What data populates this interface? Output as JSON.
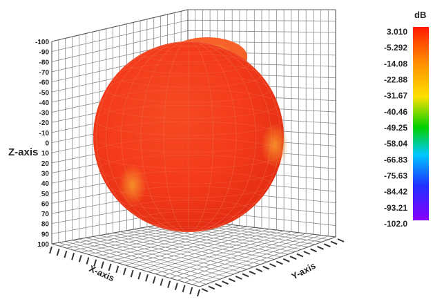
{
  "chart_data": {
    "type": "3d-surface",
    "surface": "spherical radiation pattern",
    "z_axis": {
      "label": "Z-axis",
      "ticks": [
        "-100",
        "-90",
        "-80",
        "-70",
        "-60",
        "-50",
        "-40",
        "-30",
        "-20",
        "-10",
        "0",
        "10",
        "20",
        "30",
        "40",
        "50",
        "60",
        "70",
        "80",
        "90",
        "100"
      ],
      "range": [
        -100,
        100
      ]
    },
    "x_axis": {
      "label": "X-axis",
      "range": [
        -100,
        100
      ]
    },
    "y_axis": {
      "label": "Y-axis",
      "range": [
        -100,
        100
      ]
    },
    "colorbar": {
      "unit": "dB",
      "labels": [
        "3.010",
        "-5.292",
        "-14.08",
        "-22.88",
        "-31.67",
        "-40.46",
        "-49.25",
        "-58.04",
        "-66.83",
        "-75.63",
        "-84.42",
        "-93.21",
        "-102.0"
      ],
      "colors": [
        "#ff1a00",
        "#ff8c00",
        "#ffe000",
        "#00d000",
        "#00c8ff",
        "#2030ff",
        "#8800ff"
      ]
    },
    "surface_colors": {
      "base": "#f5391b",
      "highlight": "#f78a2a",
      "wire": "#f06a4a"
    },
    "grid": true
  }
}
